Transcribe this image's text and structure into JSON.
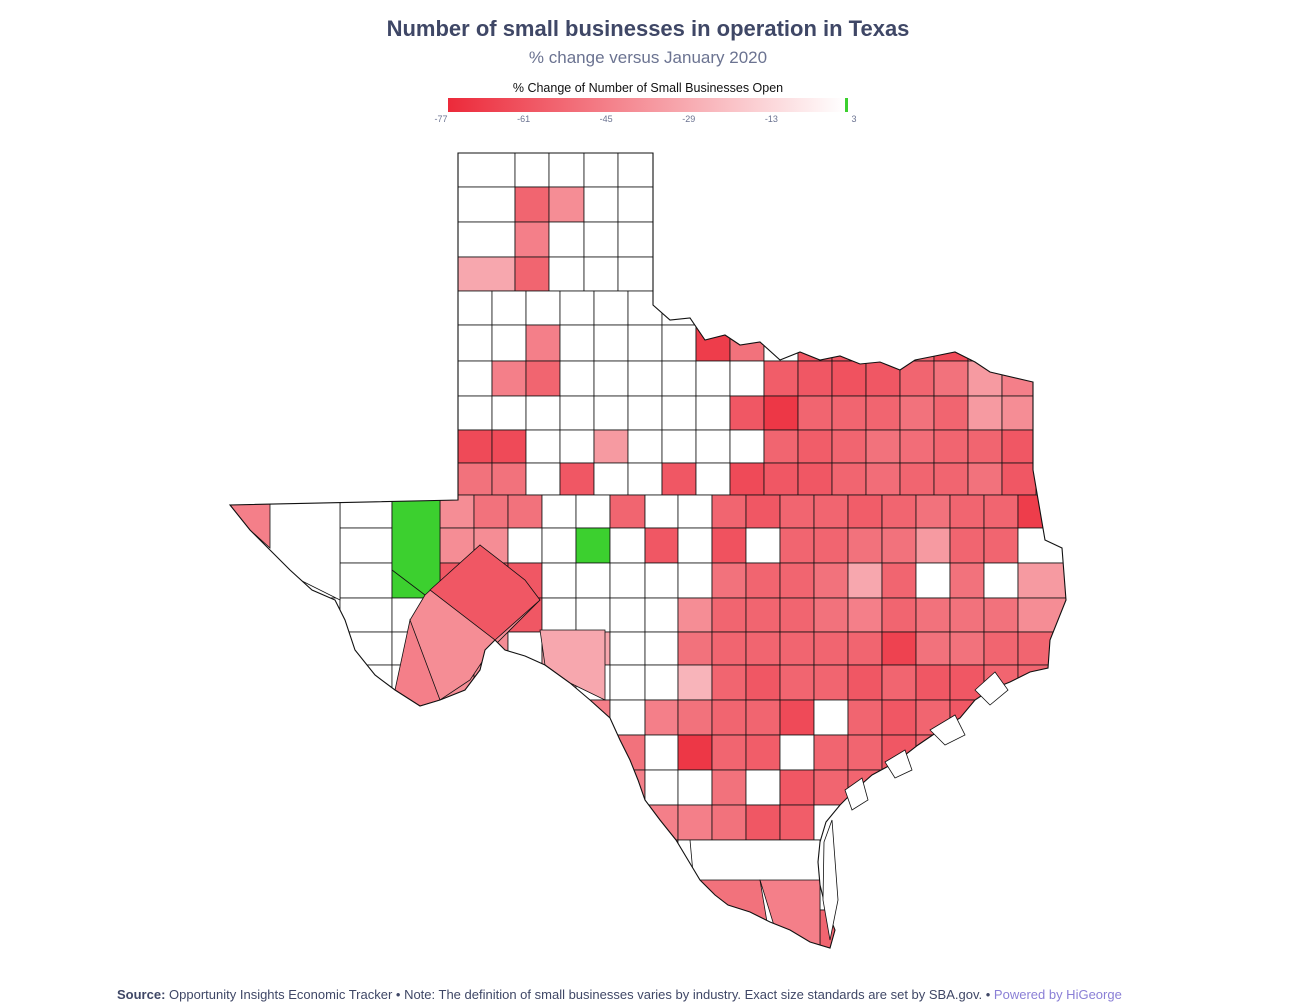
{
  "header": {
    "title": "Number of small businesses in operation in Texas",
    "subtitle": "% change versus January 2020"
  },
  "legend": {
    "title": "% Change of Number of Small Businesses Open",
    "ticks": [
      "-77",
      "-61",
      "-45",
      "-29",
      "-13",
      "3"
    ],
    "min": -77,
    "max": 3,
    "color_min": "#ec2a3a",
    "color_zero": "#ffffff",
    "color_positive": "#3cd02f"
  },
  "footer": {
    "source_label": "Source:",
    "source_text": "Opportunity Insights Economic Tracker • Note: The definition of small businesses varies by industry. Exact size standards are set by SBA.gov. •",
    "powered_by": "Powered by HiGeorge"
  },
  "colors": {
    "title": "#3f4766",
    "subtitle": "#6b7391",
    "border": "#111111",
    "link": "#8a7fd6"
  }
}
